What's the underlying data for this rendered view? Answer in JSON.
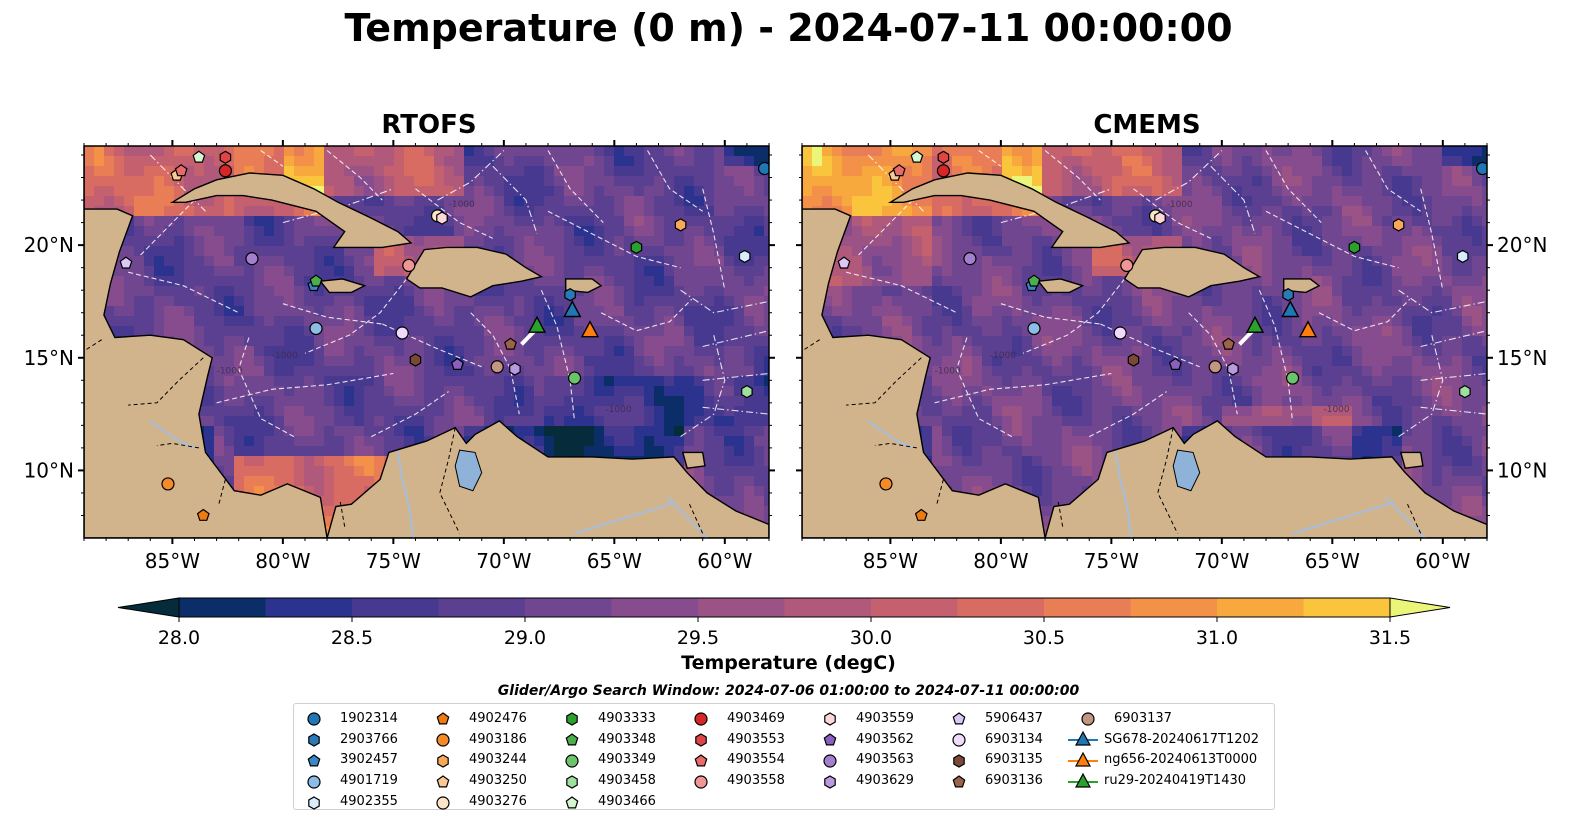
{
  "title": "Temperature (0 m) - 2024-07-11 00:00:00",
  "panels": [
    {
      "title": "RTOFS",
      "lon_ticks": [
        "85°W",
        "80°W",
        "75°W",
        "70°W",
        "65°W",
        "60°W"
      ],
      "lat_ticks": [
        "20°N",
        "15°N",
        "10°N"
      ]
    },
    {
      "title": "CMEMS",
      "lon_ticks": [
        "85°W",
        "80°W",
        "75°W",
        "70°W",
        "65°W",
        "60°W"
      ],
      "lat_ticks": [
        "20°N",
        "15°N",
        "10°N"
      ]
    }
  ],
  "map_extent": {
    "lon": [
      -89,
      -58
    ],
    "lat": [
      7,
      24.4
    ]
  },
  "colors": {
    "land": "#d2b48c",
    "lake": "#8fb2d9",
    "river": "#a6bddb",
    "scale": [
      "#062b3a",
      "#0c2e68",
      "#2b338f",
      "#47398f",
      "#5b3f90",
      "#714691",
      "#864c8d",
      "#9b5285",
      "#b0597b",
      "#c5606f",
      "#d96c62",
      "#e97d55",
      "#f39149",
      "#f8a93e",
      "#fac43c",
      "#f5e04a",
      "#eaf57a"
    ]
  },
  "colorbar": {
    "label": "Temperature (degC)",
    "min": 28.0,
    "max": 31.5,
    "step": 0.25,
    "ticks": [
      "28.0",
      "28.5",
      "29.0",
      "29.5",
      "30.0",
      "30.5",
      "31.0",
      "31.5"
    ]
  },
  "search_window": "Glider/Argo Search Window: 2024-07-06 01:00:00 to 2024-07-11 00:00:00",
  "floats": [
    {
      "id": "1902314",
      "marker": "circle",
      "color": "#1f77b4",
      "lon": -58.2,
      "lat": 23.4
    },
    {
      "id": "2903766",
      "marker": "hexagon",
      "color": "#2a7ab8",
      "lon": -67.0,
      "lat": 17.8
    },
    {
      "id": "3902457",
      "marker": "pentagon",
      "color": "#3a86c8",
      "lon": -78.6,
      "lat": 18.2
    },
    {
      "id": "4901719",
      "marker": "circle",
      "color": "#8bbde6",
      "lon": -78.5,
      "lat": 16.3
    },
    {
      "id": "4902355",
      "marker": "hexagon",
      "color": "#d8ecfa",
      "lon": -59.1,
      "lat": 19.5
    },
    {
      "id": "4902476",
      "marker": "pentagon",
      "color": "#ef7a0e",
      "lon": -83.6,
      "lat": 8.0
    },
    {
      "id": "4903186",
      "marker": "circle",
      "color": "#f58a2a",
      "lon": -85.2,
      "lat": 9.4
    },
    {
      "id": "4903244",
      "marker": "hexagon",
      "color": "#f9a85a",
      "lon": -62.0,
      "lat": 20.9
    },
    {
      "id": "4903250",
      "marker": "pentagon",
      "color": "#fcc894",
      "lon": -84.8,
      "lat": 23.1
    },
    {
      "id": "4903276",
      "marker": "circle",
      "color": "#fde4c6",
      "lon": -73.0,
      "lat": 21.3
    },
    {
      "id": "4903333",
      "marker": "hexagon",
      "color": "#2ca02c",
      "lon": -64.0,
      "lat": 19.9
    },
    {
      "id": "4903348",
      "marker": "pentagon",
      "color": "#4caf4c",
      "lon": -78.5,
      "lat": 18.4
    },
    {
      "id": "4903349",
      "marker": "circle",
      "color": "#6ac46a",
      "lon": -66.8,
      "lat": 14.1
    },
    {
      "id": "4903458",
      "marker": "hexagon",
      "color": "#9ee09e",
      "lon": -59.0,
      "lat": 13.5
    },
    {
      "id": "4903466",
      "marker": "pentagon",
      "color": "#d4f7d0",
      "lon": -83.8,
      "lat": 23.9
    },
    {
      "id": "4903469",
      "marker": "circle",
      "color": "#d62728",
      "lon": -82.6,
      "lat": 23.3
    },
    {
      "id": "4903553",
      "marker": "hexagon",
      "color": "#e04444",
      "lon": -82.6,
      "lat": 23.9
    },
    {
      "id": "4903554",
      "marker": "pentagon",
      "color": "#ea6a6a",
      "lon": -84.6,
      "lat": 23.3
    },
    {
      "id": "4903558",
      "marker": "circle",
      "color": "#f19696",
      "lon": -74.3,
      "lat": 19.1
    },
    {
      "id": "4903559",
      "marker": "hexagon",
      "color": "#fdd8d8",
      "lon": -72.8,
      "lat": 21.2
    },
    {
      "id": "4903562",
      "marker": "pentagon",
      "color": "#8b5fbf",
      "lon": -72.1,
      "lat": 14.7
    },
    {
      "id": "4903563",
      "marker": "circle",
      "color": "#a47fd0",
      "lon": -81.4,
      "lat": 19.4
    },
    {
      "id": "4903629",
      "marker": "hexagon",
      "color": "#b99ae0",
      "lon": -69.5,
      "lat": 14.5
    },
    {
      "id": "5906437",
      "marker": "pentagon",
      "color": "#dcc8f5",
      "lon": -87.1,
      "lat": 19.2
    },
    {
      "id": "6903134",
      "marker": "circle",
      "color": "#efdcfa",
      "lon": -74.6,
      "lat": 16.1
    },
    {
      "id": "6903135",
      "marker": "hexagon",
      "color": "#7a4a36",
      "lon": -74.0,
      "lat": 14.9
    },
    {
      "id": "6903136",
      "marker": "pentagon",
      "color": "#9a634a",
      "lon": -69.7,
      "lat": 15.6
    },
    {
      "id": "6903137",
      "marker": "circle",
      "color": "#c49580",
      "lon": -70.3,
      "lat": 14.6
    }
  ],
  "gliders": [
    {
      "id": "SG678-20240617T1202",
      "marker": "triangle",
      "color": "#1f77b4",
      "lon": -66.9,
      "lat": 17.1
    },
    {
      "id": "ng656-20240613T0000",
      "marker": "triangle",
      "color": "#ff7f0e",
      "lon": -66.1,
      "lat": 16.2
    },
    {
      "id": "ru29-20240419T1430",
      "marker": "triangle",
      "color": "#2ca02c",
      "lon": -68.5,
      "lat": 16.4
    }
  ],
  "legend_columns": [
    [
      "1902314",
      "2903766",
      "3902457",
      "4901719",
      "4902355"
    ],
    [
      "4902476",
      "4903186",
      "4903244",
      "4903250",
      "4903276"
    ],
    [
      "4903333",
      "4903348",
      "4903349",
      "4903458",
      "4903466"
    ],
    [
      "4903469",
      "4903553",
      "4903554",
      "4903558"
    ],
    [
      "4903559",
      "4903562",
      "4903563",
      "4903629"
    ],
    [
      "5906437",
      "6903134",
      "6903135",
      "6903136"
    ],
    [
      "6903137",
      "SG678-20240617T1202",
      "ng656-20240613T0000",
      "ru29-20240419T1430"
    ]
  ]
}
